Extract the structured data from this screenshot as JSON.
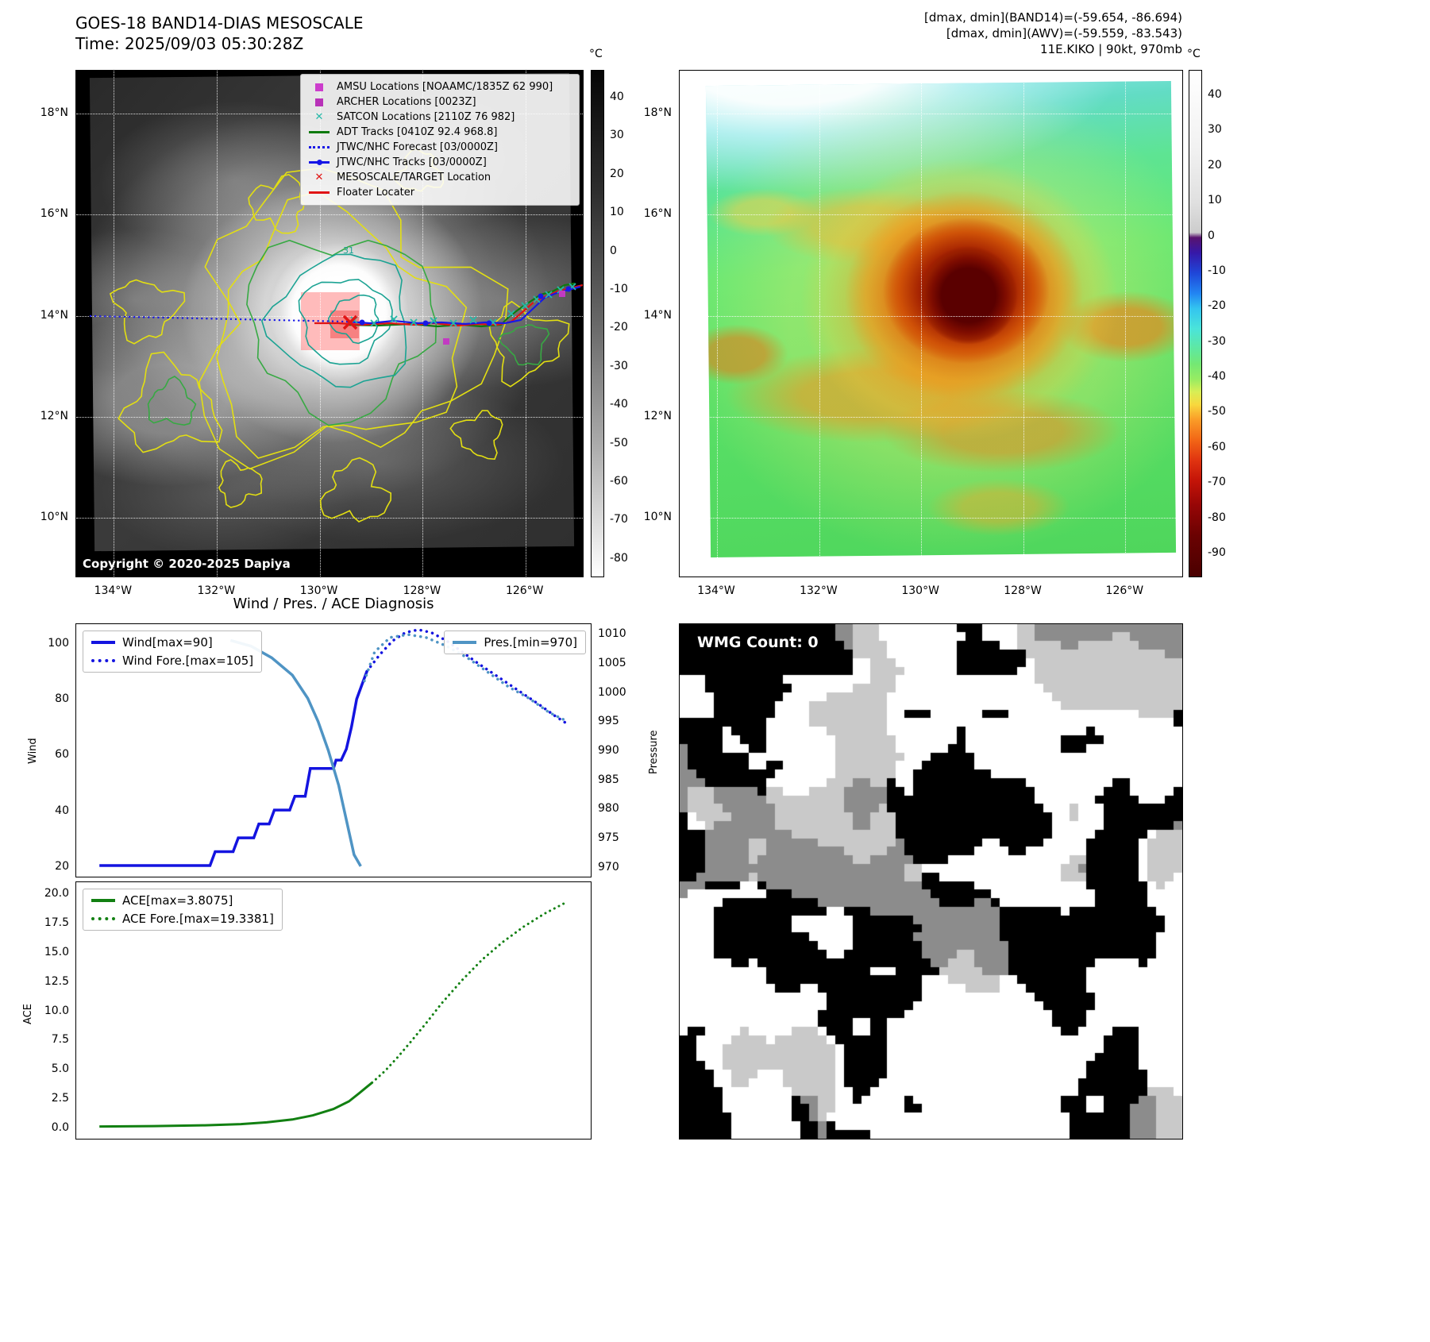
{
  "panel_band14": {
    "title_line1": "GOES-18 BAND14-DIAS MESOSCALE",
    "title_line2": "Time: 2025/09/03 05:30:28Z",
    "copyright": "Copyright © 2020-2025 Dapiya",
    "contour_label": "-31",
    "colorbar": {
      "unit": "°C",
      "vmax": 47,
      "vmin": -85,
      "ticks": [
        40,
        30,
        20,
        10,
        0,
        -10,
        -20,
        -30,
        -40,
        -50,
        -60,
        -70,
        -80
      ]
    },
    "lon_ticks": [
      "134°W",
      "132°W",
      "130°W",
      "128°W",
      "126°W"
    ],
    "lat_ticks": [
      "18°N",
      "16°N",
      "14°N",
      "12°N",
      "10°N"
    ],
    "legend": [
      {
        "marker": "square",
        "color": "#cc3dcc",
        "label": "AMSU Locations [NOAAMC/1835Z 62 990]"
      },
      {
        "marker": "square",
        "color": "#b832b8",
        "label": "ARCHER Locations [0023Z]"
      },
      {
        "marker": "x",
        "color": "#26b8a8",
        "label": "SATCON Locations [2110Z 76 982]"
      },
      {
        "marker": "line",
        "color": "#0e7a0e",
        "label": "ADT Tracks [0410Z 92.4 968.8]"
      },
      {
        "marker": "dotted-line",
        "color": "#1818e6",
        "label": "JTWC/NHC Forecast [03/0000Z]"
      },
      {
        "marker": "line-dot",
        "color": "#1818e6",
        "label": "JTWC/NHC Tracks [03/0000Z]"
      },
      {
        "marker": "x",
        "color": "#e01414",
        "label": "MESOSCALE/TARGET Location"
      },
      {
        "marker": "line",
        "color": "#e01414",
        "label": "Floater Locater"
      }
    ]
  },
  "panel_awv": {
    "header_line1": "[dmax, dmin](BAND14)=(-59.654, -86.694)",
    "header_line2": "[dmax, dmin](AWV)=(-59.559, -83.543)",
    "header_line3": "11E.KIKO | 90kt, 970mb",
    "colorbar": {
      "unit": "°C",
      "vmax": 47,
      "vmin": -97,
      "ticks": [
        40,
        30,
        20,
        10,
        0,
        -10,
        -20,
        -30,
        -40,
        -50,
        -60,
        -70,
        -80,
        -90
      ]
    },
    "lon_ticks": [
      "134°W",
      "132°W",
      "130°W",
      "128°W",
      "126°W"
    ],
    "lat_ticks": [
      "18°N",
      "16°N",
      "14°N",
      "12°N",
      "10°N"
    ]
  },
  "wmg": {
    "label": "WMG Count: 0",
    "palette": {
      "black": "#000000",
      "white": "#ffffff",
      "light_gray": "#c9c9c9",
      "dark_gray": "#8c8c8c"
    }
  },
  "chart_data": [
    {
      "id": "wind-pres",
      "type": "line",
      "title": "Wind / Pres. / ACE Diagnosis",
      "x_range": [
        0,
        1
      ],
      "left_axis": {
        "label": "Wind",
        "range": [
          16,
          107
        ],
        "ticks": [
          20,
          40,
          60,
          80,
          100
        ],
        "tick_labels": [
          "20",
          "40",
          "60",
          "80",
          "100"
        ]
      },
      "right_axis": {
        "label": "Pressure",
        "range": [
          968.2,
          1011.8
        ],
        "ticks": [
          970,
          975,
          980,
          985,
          990,
          995,
          1000,
          1005,
          1010
        ],
        "tick_labels": [
          "970",
          "975",
          "980",
          "985",
          "990",
          "995",
          "1000",
          "1005",
          "1010"
        ]
      },
      "series": [
        {
          "name": "Wind[max=90]",
          "axis": "left",
          "style": "solid",
          "color": "#1414e0",
          "width": 3.5,
          "points": [
            [
              0.045,
              20
            ],
            [
              0.26,
              20
            ],
            [
              0.27,
              25
            ],
            [
              0.305,
              25
            ],
            [
              0.315,
              30
            ],
            [
              0.345,
              30
            ],
            [
              0.355,
              35
            ],
            [
              0.375,
              35
            ],
            [
              0.385,
              40
            ],
            [
              0.415,
              40
            ],
            [
              0.425,
              45
            ],
            [
              0.445,
              45
            ],
            [
              0.455,
              55
            ],
            [
              0.5,
              55
            ],
            [
              0.505,
              58
            ],
            [
              0.515,
              58
            ],
            [
              0.525,
              62
            ],
            [
              0.535,
              70
            ],
            [
              0.545,
              80
            ],
            [
              0.555,
              85
            ],
            [
              0.565,
              90
            ]
          ]
        },
        {
          "name": "Wind Fore.[max=105]",
          "axis": "left",
          "style": "dotted",
          "color": "#1414e0",
          "width": 3.5,
          "points": [
            [
              0.565,
              90
            ],
            [
              0.59,
              96
            ],
            [
              0.615,
              101
            ],
            [
              0.64,
              104
            ],
            [
              0.665,
              105
            ],
            [
              0.69,
              104
            ],
            [
              0.72,
              101
            ],
            [
              0.75,
              97
            ],
            [
              0.78,
              93
            ],
            [
              0.82,
              88
            ],
            [
              0.86,
              83
            ],
            [
              0.9,
              78
            ],
            [
              0.93,
              74
            ],
            [
              0.955,
              71
            ]
          ]
        },
        {
          "name": "Pres.[min=970]",
          "axis": "right",
          "style": "solid",
          "color": "#4f94c4",
          "width": 3.5,
          "points": [
            [
              0.3,
              1009
            ],
            [
              0.34,
              1008
            ],
            [
              0.38,
              1006
            ],
            [
              0.42,
              1003
            ],
            [
              0.45,
              999
            ],
            [
              0.47,
              995
            ],
            [
              0.49,
              990
            ],
            [
              0.51,
              984
            ],
            [
              0.525,
              978
            ],
            [
              0.54,
              972
            ],
            [
              0.553,
              970
            ]
          ]
        },
        {
          "name": "Pres. Fore.",
          "axis": "right",
          "style": "dotted",
          "color": "#4f94c4",
          "width": 3.5,
          "points": [
            [
              0.56,
              1002
            ],
            [
              0.58,
              1007
            ],
            [
              0.61,
              1009.5
            ],
            [
              0.645,
              1010
            ],
            [
              0.68,
              1009.5
            ],
            [
              0.72,
              1008
            ],
            [
              0.76,
              1006
            ],
            [
              0.8,
              1003.5
            ],
            [
              0.84,
              1001
            ],
            [
              0.88,
              999
            ],
            [
              0.92,
              996.5
            ],
            [
              0.955,
              995
            ]
          ]
        }
      ],
      "legend_left": [
        {
          "label": "Wind[max=90]",
          "style": "solid",
          "color": "#1414e0"
        },
        {
          "label": "Wind Fore.[max=105]",
          "style": "dotted",
          "color": "#1414e0"
        }
      ],
      "legend_right": [
        {
          "label": "Pres.[min=970]",
          "style": "solid",
          "color": "#4f94c4"
        }
      ]
    },
    {
      "id": "ace",
      "type": "line",
      "x_range": [
        0,
        1
      ],
      "left_axis": {
        "label": "ACE",
        "range": [
          -1,
          21
        ],
        "ticks": [
          0,
          2.5,
          5,
          7.5,
          10,
          12.5,
          15,
          17.5,
          20
        ],
        "tick_labels": [
          "0.0",
          "2.5",
          "5.0",
          "7.5",
          "10.0",
          "12.5",
          "15.0",
          "17.5",
          "20.0"
        ]
      },
      "series": [
        {
          "name": "ACE[max=3.8075]",
          "axis": "left",
          "style": "solid",
          "color": "#128012",
          "width": 3,
          "points": [
            [
              0.045,
              0.05
            ],
            [
              0.15,
              0.08
            ],
            [
              0.25,
              0.15
            ],
            [
              0.32,
              0.25
            ],
            [
              0.37,
              0.4
            ],
            [
              0.42,
              0.65
            ],
            [
              0.46,
              1.0
            ],
            [
              0.5,
              1.55
            ],
            [
              0.53,
              2.2
            ],
            [
              0.55,
              2.9
            ],
            [
              0.565,
              3.45
            ],
            [
              0.575,
              3.81
            ]
          ]
        },
        {
          "name": "ACE Fore.[max=19.3381]",
          "axis": "left",
          "style": "dotted",
          "color": "#128012",
          "width": 3,
          "points": [
            [
              0.575,
              3.81
            ],
            [
              0.6,
              4.8
            ],
            [
              0.625,
              6.0
            ],
            [
              0.65,
              7.3
            ],
            [
              0.68,
              8.9
            ],
            [
              0.71,
              10.6
            ],
            [
              0.75,
              12.6
            ],
            [
              0.79,
              14.4
            ],
            [
              0.83,
              15.9
            ],
            [
              0.87,
              17.2
            ],
            [
              0.91,
              18.3
            ],
            [
              0.955,
              19.34
            ]
          ]
        }
      ],
      "legend_left": [
        {
          "label": "ACE[max=3.8075]",
          "style": "solid",
          "color": "#128012"
        },
        {
          "label": "ACE Fore.[max=19.3381]",
          "style": "dotted",
          "color": "#128012"
        }
      ]
    }
  ]
}
